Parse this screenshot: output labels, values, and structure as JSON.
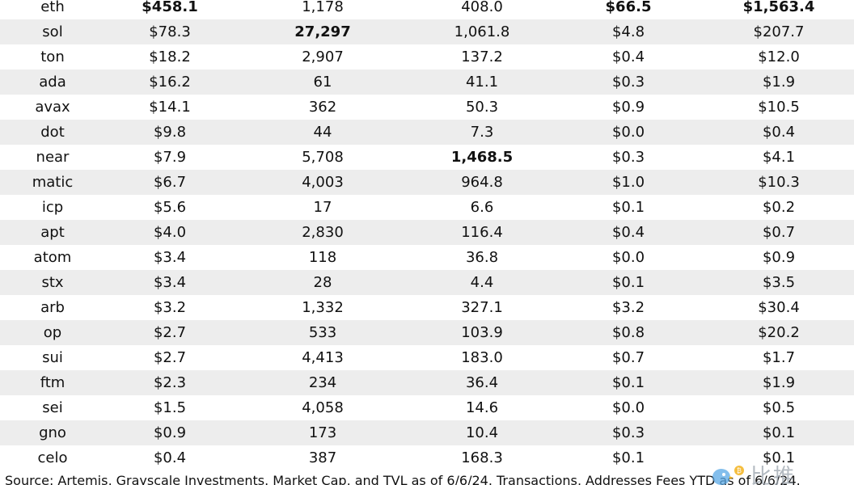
{
  "rows": [
    {
      "name": "eth",
      "c1": "$458.1",
      "c2": "1,178",
      "c3": "408.0",
      "c4": "$66.5",
      "c5": "$1,563.4",
      "bold": [
        1,
        4,
        5
      ]
    },
    {
      "name": "sol",
      "c1": "$78.3",
      "c2": "27,297",
      "c3": "1,061.8",
      "c4": "$4.8",
      "c5": "$207.7",
      "bold": [
        2
      ]
    },
    {
      "name": "ton",
      "c1": "$18.2",
      "c2": "2,907",
      "c3": "137.2",
      "c4": "$0.4",
      "c5": "$12.0",
      "bold": []
    },
    {
      "name": "ada",
      "c1": "$16.2",
      "c2": "61",
      "c3": "41.1",
      "c4": "$0.3",
      "c5": "$1.9",
      "bold": []
    },
    {
      "name": "avax",
      "c1": "$14.1",
      "c2": "362",
      "c3": "50.3",
      "c4": "$0.9",
      "c5": "$10.5",
      "bold": []
    },
    {
      "name": "dot",
      "c1": "$9.8",
      "c2": "44",
      "c3": "7.3",
      "c4": "$0.0",
      "c5": "$0.4",
      "bold": []
    },
    {
      "name": "near",
      "c1": "$7.9",
      "c2": "5,708",
      "c3": "1,468.5",
      "c4": "$0.3",
      "c5": "$4.1",
      "bold": [
        3
      ]
    },
    {
      "name": "matic",
      "c1": "$6.7",
      "c2": "4,003",
      "c3": "964.8",
      "c4": "$1.0",
      "c5": "$10.3",
      "bold": []
    },
    {
      "name": "icp",
      "c1": "$5.6",
      "c2": "17",
      "c3": "6.6",
      "c4": "$0.1",
      "c5": "$0.2",
      "bold": []
    },
    {
      "name": "apt",
      "c1": "$4.0",
      "c2": "2,830",
      "c3": "116.4",
      "c4": "$0.4",
      "c5": "$0.7",
      "bold": []
    },
    {
      "name": "atom",
      "c1": "$3.4",
      "c2": "118",
      "c3": "36.8",
      "c4": "$0.0",
      "c5": "$0.9",
      "bold": []
    },
    {
      "name": "stx",
      "c1": "$3.4",
      "c2": "28",
      "c3": "4.4",
      "c4": "$0.1",
      "c5": "$3.5",
      "bold": []
    },
    {
      "name": "arb",
      "c1": "$3.2",
      "c2": "1,332",
      "c3": "327.1",
      "c4": "$3.2",
      "c5": "$30.4",
      "bold": []
    },
    {
      "name": "op",
      "c1": "$2.7",
      "c2": "533",
      "c3": "103.9",
      "c4": "$0.8",
      "c5": "$20.2",
      "bold": []
    },
    {
      "name": "sui",
      "c1": "$2.7",
      "c2": "4,413",
      "c3": "183.0",
      "c4": "$0.7",
      "c5": "$1.7",
      "bold": []
    },
    {
      "name": "ftm",
      "c1": "$2.3",
      "c2": "234",
      "c3": "36.4",
      "c4": "$0.1",
      "c5": "$1.9",
      "bold": []
    },
    {
      "name": "sei",
      "c1": "$1.5",
      "c2": "4,058",
      "c3": "14.6",
      "c4": "$0.0",
      "c5": "$0.5",
      "bold": []
    },
    {
      "name": "gno",
      "c1": "$0.9",
      "c2": "173",
      "c3": "10.4",
      "c4": "$0.3",
      "c5": "$0.1",
      "bold": []
    },
    {
      "name": "celo",
      "c1": "$0.4",
      "c2": "387",
      "c3": "168.3",
      "c4": "$0.1",
      "c5": "$0.1",
      "bold": []
    }
  ],
  "source": "Source: Artemis, Grayscale Investments. Market Cap, and TVL as of 6/6/24. Transactions, Addresses Fees YTD as of 6/6/24.",
  "watermark": {
    "text": "比推",
    "icon": "bird-logo-icon",
    "colors": {
      "bird": "#5aa9e6",
      "coin": "#f2a900"
    }
  }
}
